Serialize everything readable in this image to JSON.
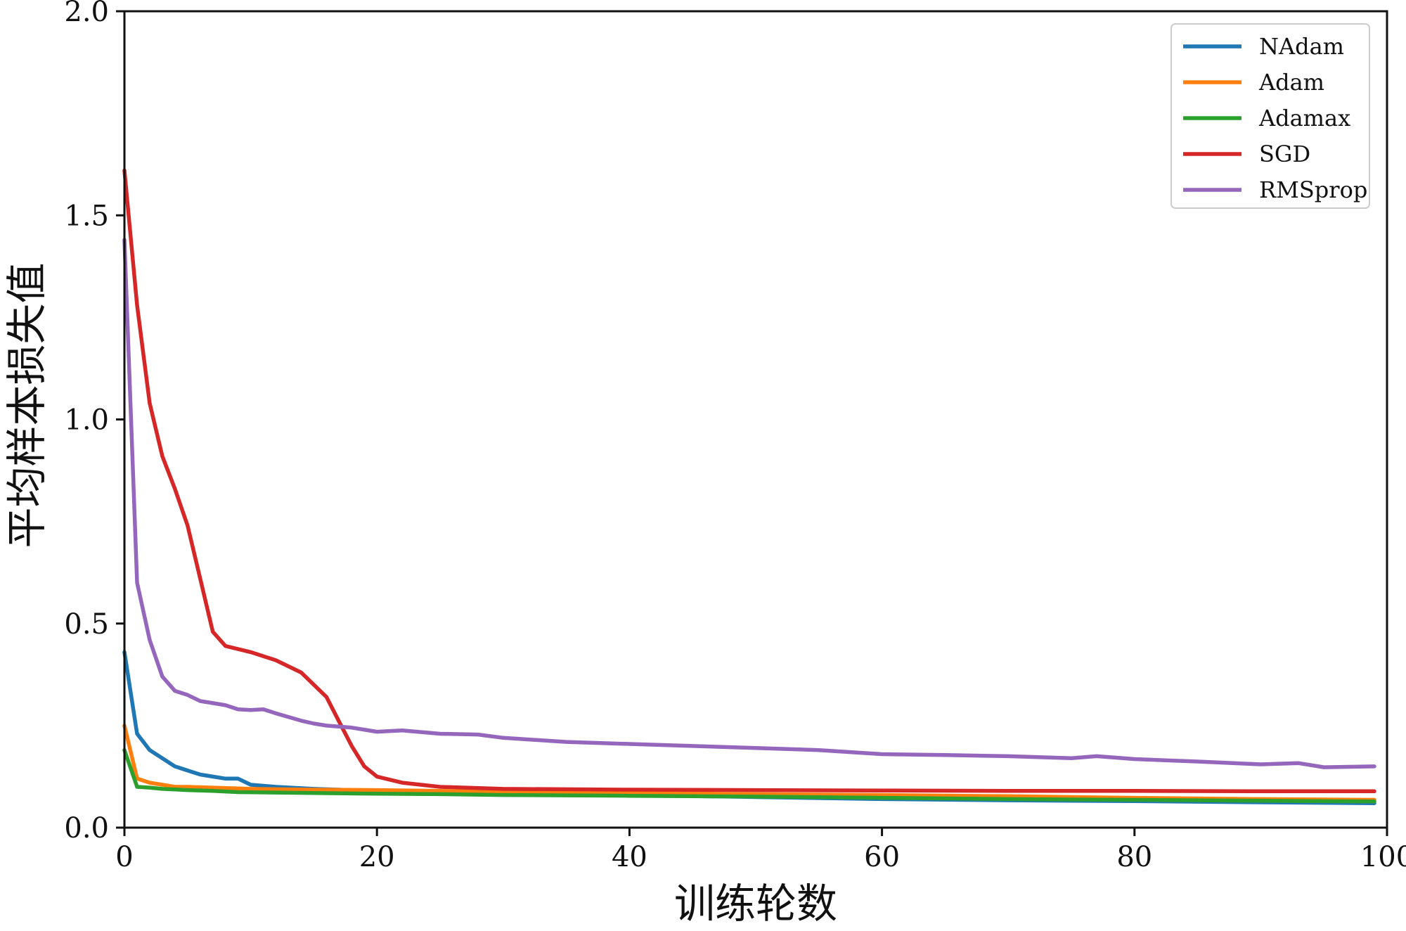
{
  "chart_data": {
    "type": "line",
    "title": "",
    "xlabel": "训练轮数",
    "ylabel": "平均样本损失值",
    "xlim": [
      0,
      100
    ],
    "ylim": [
      0,
      2.0
    ],
    "x_ticks": [
      0,
      20,
      40,
      60,
      80,
      100
    ],
    "x_tick_labels": [
      "0",
      "20",
      "40",
      "60",
      "80",
      "100"
    ],
    "y_ticks": [
      0.0,
      0.5,
      1.0,
      1.5,
      2.0
    ],
    "y_tick_labels": [
      "0.0",
      "0.5",
      "1.0",
      "1.5",
      "2.0"
    ],
    "grid": false,
    "legend_position": "top-right",
    "series": [
      {
        "name": "NAdam",
        "color": "#1f77b4",
        "x": [
          0,
          1,
          2,
          3,
          4,
          5,
          6,
          7,
          8,
          9,
          10,
          12,
          15,
          20,
          25,
          30,
          40,
          50,
          60,
          70,
          80,
          90,
          99
        ],
        "y": [
          0.43,
          0.23,
          0.19,
          0.17,
          0.15,
          0.14,
          0.13,
          0.125,
          0.12,
          0.12,
          0.105,
          0.1,
          0.095,
          0.09,
          0.088,
          0.085,
          0.08,
          0.075,
          0.07,
          0.067,
          0.065,
          0.062,
          0.06
        ]
      },
      {
        "name": "Adam",
        "color": "#ff7f0e",
        "x": [
          0,
          1,
          2,
          3,
          4,
          5,
          7,
          10,
          15,
          20,
          25,
          30,
          40,
          50,
          60,
          70,
          80,
          90,
          99
        ],
        "y": [
          0.25,
          0.12,
          0.11,
          0.105,
          0.1,
          0.1,
          0.098,
          0.095,
          0.093,
          0.092,
          0.09,
          0.088,
          0.085,
          0.082,
          0.08,
          0.077,
          0.073,
          0.07,
          0.068
        ]
      },
      {
        "name": "Adamax",
        "color": "#2ca02c",
        "x": [
          0,
          1,
          2,
          3,
          5,
          7,
          9,
          12,
          15,
          20,
          25,
          30,
          40,
          50,
          60,
          70,
          80,
          90,
          99
        ],
        "y": [
          0.19,
          0.1,
          0.098,
          0.095,
          0.092,
          0.09,
          0.087,
          0.086,
          0.085,
          0.083,
          0.082,
          0.08,
          0.078,
          0.076,
          0.073,
          0.07,
          0.068,
          0.066,
          0.064
        ]
      },
      {
        "name": "SGD",
        "color": "#d62728",
        "x": [
          0,
          1,
          2,
          3,
          4,
          5,
          6,
          7,
          8,
          10,
          12,
          14,
          16,
          17,
          18,
          19,
          20,
          22,
          25,
          30,
          40,
          50,
          60,
          70,
          80,
          90,
          99
        ],
        "y": [
          1.61,
          1.28,
          1.04,
          0.91,
          0.83,
          0.74,
          0.61,
          0.48,
          0.445,
          0.43,
          0.41,
          0.38,
          0.32,
          0.26,
          0.2,
          0.15,
          0.125,
          0.11,
          0.1,
          0.095,
          0.093,
          0.092,
          0.091,
          0.09,
          0.09,
          0.089,
          0.089
        ]
      },
      {
        "name": "RMSprop",
        "color": "#9467bd",
        "x": [
          0,
          1,
          2,
          3,
          4,
          5,
          6,
          7,
          8,
          9,
          10,
          11,
          12,
          14,
          15,
          16,
          18,
          20,
          22,
          25,
          28,
          30,
          35,
          40,
          45,
          50,
          55,
          60,
          65,
          70,
          75,
          77,
          80,
          85,
          90,
          93,
          95,
          99
        ],
        "y": [
          1.44,
          0.6,
          0.46,
          0.37,
          0.335,
          0.325,
          0.31,
          0.305,
          0.3,
          0.29,
          0.288,
          0.29,
          0.28,
          0.262,
          0.255,
          0.25,
          0.245,
          0.235,
          0.238,
          0.23,
          0.228,
          0.22,
          0.21,
          0.205,
          0.2,
          0.195,
          0.19,
          0.18,
          0.178,
          0.175,
          0.17,
          0.175,
          0.168,
          0.162,
          0.155,
          0.158,
          0.148,
          0.15
        ]
      }
    ]
  }
}
